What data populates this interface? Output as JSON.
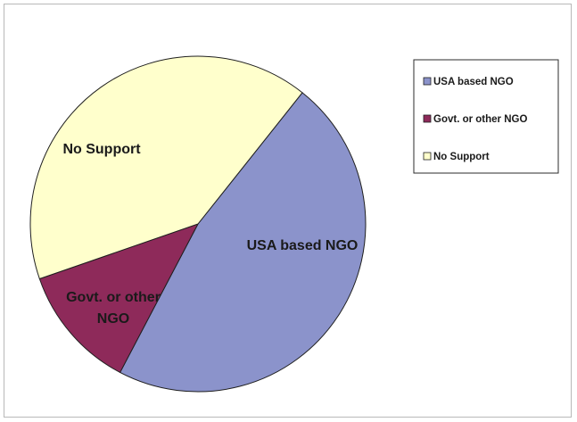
{
  "chart_data": {
    "type": "pie",
    "categories": [
      "USA based NGO",
      "Govt. or other NGO",
      "No Support"
    ],
    "values": [
      47,
      12,
      41
    ],
    "colors": [
      "#8B93CB",
      "#8E2A5A",
      "#FFFFCC"
    ],
    "slice_labels": [
      "USA based NGO",
      "Govt. or other NGO",
      "No Support"
    ],
    "legend": {
      "entries": [
        "USA based NGO",
        "Govt. or other NGO",
        "No Support"
      ],
      "placement": "top-right"
    },
    "title": ""
  }
}
